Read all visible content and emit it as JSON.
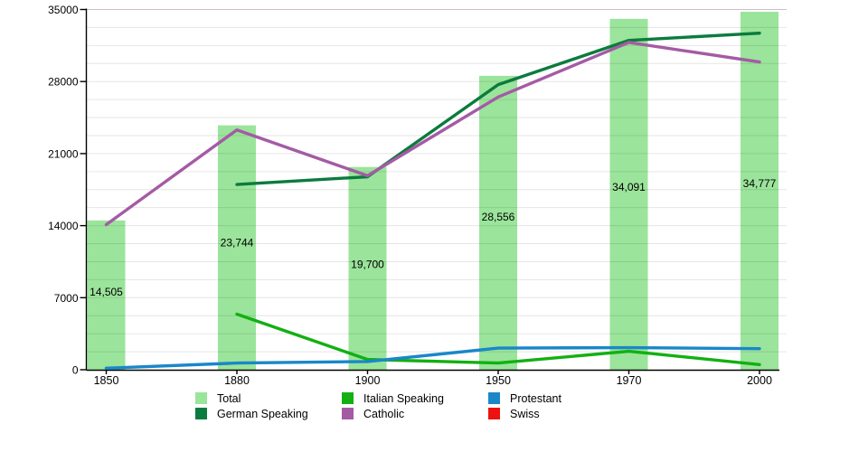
{
  "chart_data": {
    "type": "bar+line",
    "title": "",
    "xlabel": "",
    "ylabel": "",
    "categories": [
      "1850",
      "1880",
      "1900",
      "1950",
      "1970",
      "2000"
    ],
    "ylim": [
      0,
      35000
    ],
    "y_tick_labels": [
      "0",
      "7000",
      "14000",
      "21000",
      "28000",
      "35000"
    ],
    "y_tick_values": [
      0,
      7000,
      14000,
      21000,
      28000,
      35000
    ],
    "minor_gridline_step": 1750,
    "grid": "on",
    "legend_position": "bottom",
    "bar_series": {
      "name": "Total",
      "color": "#9be49b",
      "values": [
        14505,
        23744,
        19700,
        28556,
        34091,
        34777
      ],
      "value_labels": [
        "14,505",
        "23,744",
        "19,700",
        "28,556",
        "34,091",
        "34,777"
      ]
    },
    "line_series": [
      {
        "name": "German Speaking",
        "color": "#0b7b3e",
        "values": [
          null,
          18000,
          18750,
          27700,
          32000,
          32700
        ]
      },
      {
        "name": "Catholic",
        "color": "#a45ba4",
        "values": [
          14100,
          23300,
          18850,
          26500,
          31800,
          29900
        ]
      },
      {
        "name": "Italian Speaking",
        "color": "#12b012",
        "values": [
          null,
          5400,
          1000,
          650,
          1800,
          500
        ]
      },
      {
        "name": "Protestant",
        "color": "#1a87c9",
        "values": [
          150,
          650,
          800,
          2100,
          2150,
          2050
        ]
      },
      {
        "name": "Swiss",
        "color": "#ee1111",
        "values": [
          null,
          null,
          null,
          null,
          null,
          null
        ]
      }
    ],
    "legend_entries": [
      {
        "label": "Total",
        "color": "#9be49b"
      },
      {
        "label": "Italian Speaking",
        "color": "#12b012"
      },
      {
        "label": "Protestant",
        "color": "#1a87c9"
      },
      {
        "label": "German Speaking",
        "color": "#0b7b3e"
      },
      {
        "label": "Catholic",
        "color": "#a45ba4"
      },
      {
        "label": "Swiss",
        "color": "#ee1111"
      }
    ]
  },
  "colors": {
    "background": "#ffffff",
    "axis": "#000000",
    "gridline": "#e2e2e2",
    "top_border": "#cdbccd",
    "text": "#000000"
  }
}
